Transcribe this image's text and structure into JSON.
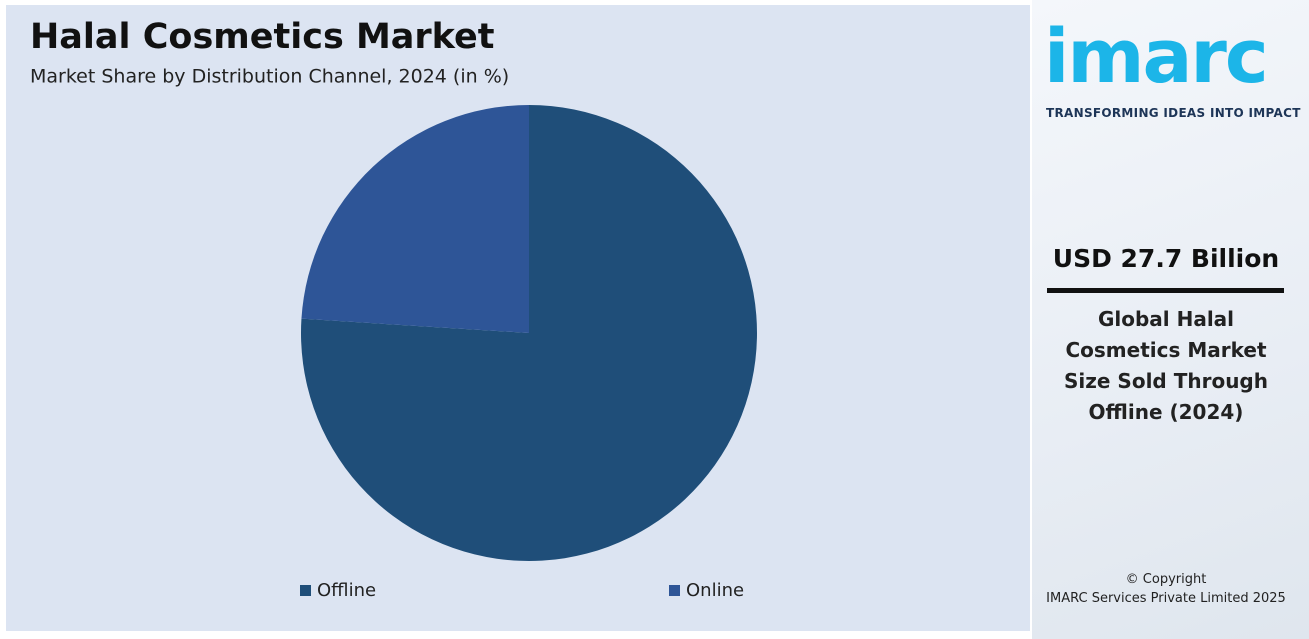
{
  "chart_data": {
    "type": "pie",
    "title": "Halal Cosmetics Market",
    "subtitle": "Market Share by Distribution Channel, 2024 (in %)",
    "categories": [
      "Offline",
      "Online"
    ],
    "values": [
      76,
      24
    ],
    "colors": [
      "#1f4e79",
      "#2e5597"
    ]
  },
  "sidebar": {
    "logo": "imarc",
    "tagline": "TRANSFORMING IDEAS INTO IMPACT",
    "headline": "USD 27.7 Billion",
    "description": "Global Halal Cosmetics Market Size Sold Through Offline (2024)",
    "copyright": "© Copyright",
    "company": "IMARC Services Private Limited 2025"
  }
}
